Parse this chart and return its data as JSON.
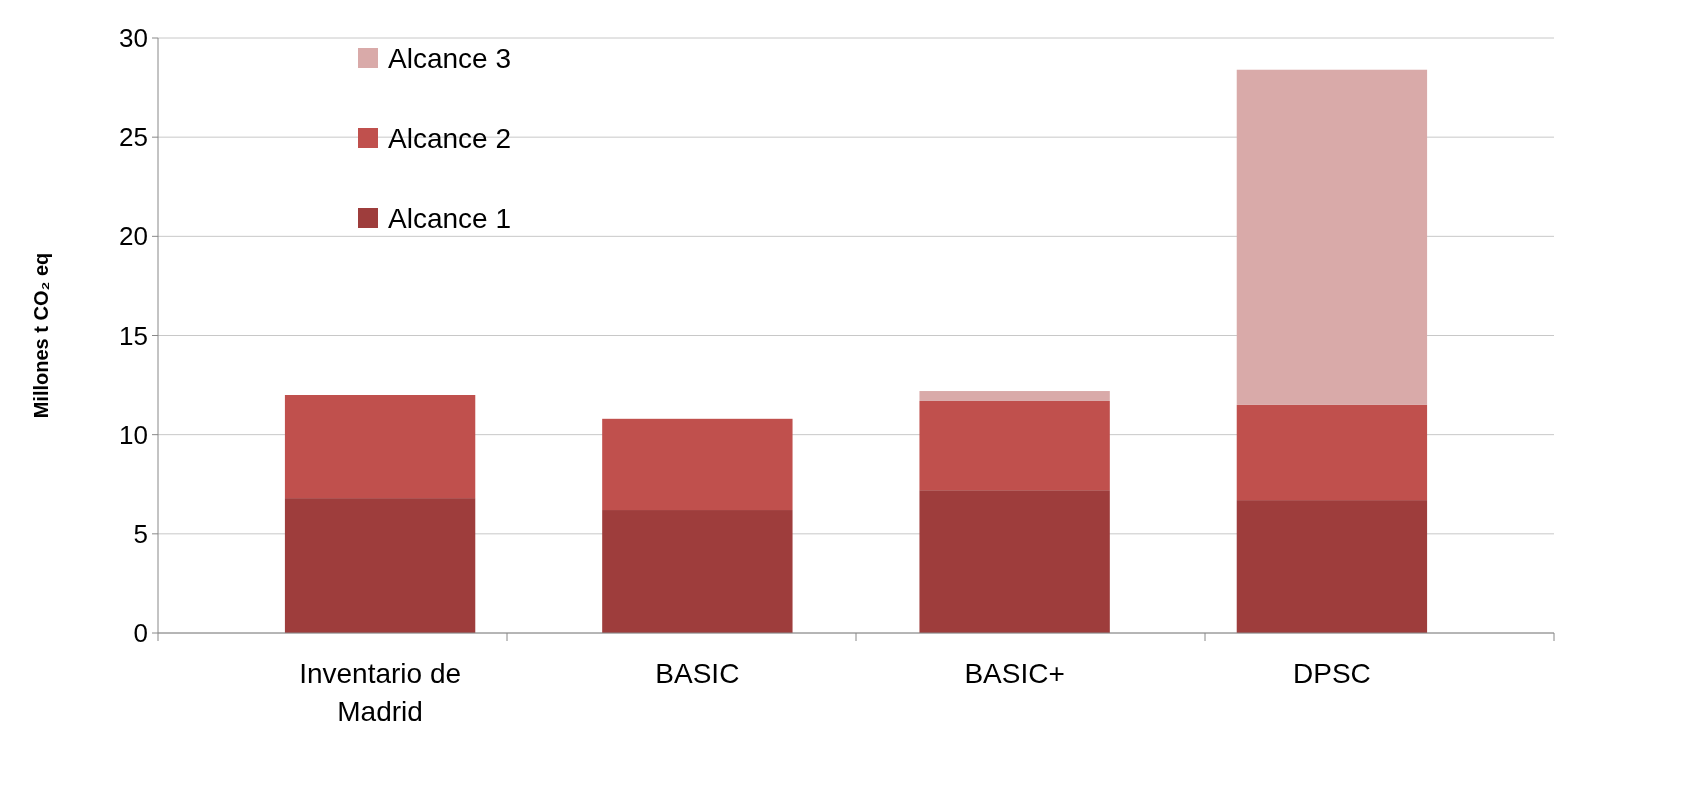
{
  "chart_data": {
    "type": "bar",
    "stacked": true,
    "ylabel": "Millones t CO₂ eq",
    "categories": [
      "Inventario de Madrid",
      "BASIC",
      "BASIC+",
      "DPSC"
    ],
    "series": [
      {
        "name": "Alcance 1",
        "color": "#9e3d3c",
        "values": [
          6.8,
          6.2,
          7.2,
          6.7
        ]
      },
      {
        "name": "Alcance 2",
        "color": "#c0504d",
        "values": [
          5.2,
          4.6,
          4.5,
          4.8
        ]
      },
      {
        "name": "Alcance 3",
        "color": "#d9aaa9",
        "values": [
          0,
          0,
          0.5,
          16.9
        ]
      }
    ],
    "ylim": [
      0,
      30
    ],
    "yticks": [
      0,
      5,
      10,
      15,
      20,
      25,
      30
    ],
    "grid": "y",
    "legend": "top left"
  }
}
